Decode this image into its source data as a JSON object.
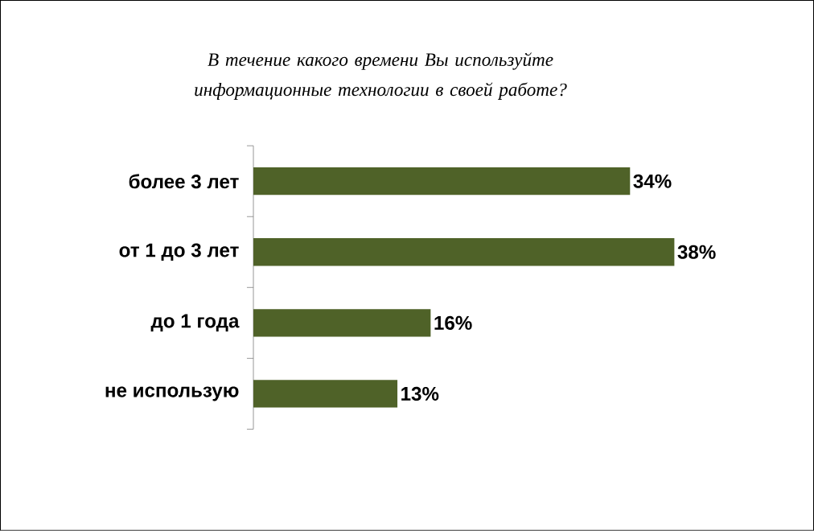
{
  "chart_data": {
    "type": "bar",
    "orientation": "horizontal",
    "title": "В течение какого времени Вы используйте информационные технологии в своей работе?",
    "categories": [
      "более 3 лет",
      "от 1 до 3 лет",
      "до 1 года",
      "не использую"
    ],
    "values": [
      34,
      38,
      16,
      13
    ],
    "value_labels": [
      "34%",
      "38%",
      "16%",
      "13%"
    ],
    "color": "#4f6228"
  }
}
